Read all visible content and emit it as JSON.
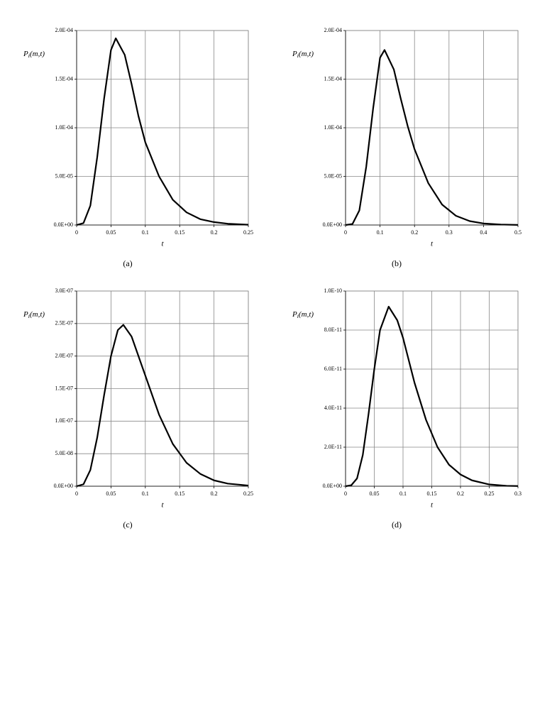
{
  "chart_data": [
    {
      "type": "line",
      "ylabel": "P_i(m,t)",
      "xlabel": "t",
      "caption": "(a)",
      "color": "#000000",
      "grid": true,
      "x": [
        0,
        0.01,
        0.02,
        0.03,
        0.04,
        0.05,
        0.057,
        0.07,
        0.08,
        0.09,
        0.1,
        0.12,
        0.14,
        0.16,
        0.18,
        0.2,
        0.22,
        0.25
      ],
      "values": [
        0,
        2e-06,
        2e-05,
        7e-05,
        0.00013,
        0.00018,
        0.000192,
        0.000175,
        0.000145,
        0.000112,
        8.5e-05,
        5e-05,
        2.6e-05,
        1.3e-05,
        6e-06,
        3e-06,
        1.3e-06,
        3e-07
      ],
      "xlim": [
        0,
        0.25
      ],
      "xticks": [
        0,
        0.05,
        0.1,
        0.15,
        0.2,
        0.25
      ],
      "ylim": [
        0,
        0.0002
      ],
      "yticks": [
        {
          "value": 0,
          "label": "0.0E+00"
        },
        {
          "value": 5e-05,
          "label": "5.0E-05"
        },
        {
          "value": 0.0001,
          "label": "1.0E-04"
        },
        {
          "value": 0.00015,
          "label": "1.5E-04"
        },
        {
          "value": 0.0002,
          "label": "2.0E-04"
        }
      ]
    },
    {
      "type": "line",
      "ylabel": "P_i(m,t)",
      "xlabel": "t",
      "caption": "(b)",
      "color": "#000000",
      "grid": true,
      "x": [
        0,
        0.02,
        0.04,
        0.06,
        0.08,
        0.1,
        0.113,
        0.14,
        0.16,
        0.18,
        0.2,
        0.24,
        0.28,
        0.32,
        0.36,
        0.4,
        0.45,
        0.5
      ],
      "values": [
        0,
        1e-06,
        1.5e-05,
        6e-05,
        0.00012,
        0.000172,
        0.00018,
        0.00016,
        0.00013,
        0.000102,
        7.8e-05,
        4.3e-05,
        2.1e-05,
        9.5e-06,
        4e-06,
        1.6e-06,
        5e-07,
        1e-07
      ],
      "xlim": [
        0,
        0.5
      ],
      "xticks": [
        0,
        0.1,
        0.2,
        0.3,
        0.4,
        0.5
      ],
      "ylim": [
        0,
        0.0002
      ],
      "yticks": [
        {
          "value": 0,
          "label": "0.0E+00"
        },
        {
          "value": 5e-05,
          "label": "5.0E-05"
        },
        {
          "value": 0.0001,
          "label": "1.0E-04"
        },
        {
          "value": 0.00015,
          "label": "1.5E-04"
        },
        {
          "value": 0.0002,
          "label": "2.0E-04"
        }
      ]
    },
    {
      "type": "line",
      "ylabel": "P_i(m,t)",
      "xlabel": "t",
      "caption": "(c)",
      "color": "#000000",
      "grid": true,
      "x": [
        0,
        0.01,
        0.02,
        0.03,
        0.04,
        0.05,
        0.06,
        0.068,
        0.08,
        0.09,
        0.1,
        0.12,
        0.14,
        0.16,
        0.18,
        0.2,
        0.22,
        0.25
      ],
      "values": [
        0,
        3e-09,
        2.5e-08,
        7.5e-08,
        1.4e-07,
        2e-07,
        2.4e-07,
        2.48e-07,
        2.3e-07,
        2e-07,
        1.7e-07,
        1.1e-07,
        6.5e-08,
        3.6e-08,
        1.9e-08,
        9e-09,
        4e-09,
        1e-09
      ],
      "xlim": [
        0,
        0.25
      ],
      "xticks": [
        0,
        0.05,
        0.1,
        0.15,
        0.2,
        0.25
      ],
      "ylim": [
        0,
        3e-07
      ],
      "yticks": [
        {
          "value": 0,
          "label": "0.0E+00"
        },
        {
          "value": 5e-08,
          "label": "5.0E-08"
        },
        {
          "value": 1e-07,
          "label": "1.0E-07"
        },
        {
          "value": 1.5e-07,
          "label": "1.5E-07"
        },
        {
          "value": 2e-07,
          "label": "2.0E-07"
        },
        {
          "value": 2.5e-07,
          "label": "2.5E-07"
        },
        {
          "value": 3e-07,
          "label": "3.0E-07"
        }
      ]
    },
    {
      "type": "line",
      "ylabel": "P_i(m,t)",
      "xlabel": "t",
      "caption": "(d)",
      "color": "#000000",
      "grid": true,
      "x": [
        0,
        0.01,
        0.02,
        0.03,
        0.04,
        0.05,
        0.06,
        0.075,
        0.09,
        0.1,
        0.12,
        0.14,
        0.16,
        0.18,
        0.2,
        0.22,
        0.25,
        0.28,
        0.3
      ],
      "values": [
        0,
        5e-13,
        4e-12,
        1.6e-11,
        3.7e-11,
        6e-11,
        8e-11,
        9.2e-11,
        8.5e-11,
        7.6e-11,
        5.3e-11,
        3.4e-11,
        2e-11,
        1.1e-11,
        6e-12,
        3e-12,
        9e-13,
        2e-13,
        1e-13
      ],
      "xlim": [
        0,
        0.3
      ],
      "xticks": [
        0,
        0.05,
        0.1,
        0.15,
        0.2,
        0.25,
        0.3
      ],
      "ylim": [
        0,
        1e-10
      ],
      "yticks": [
        {
          "value": 0,
          "label": "0.0E+00"
        },
        {
          "value": 2e-11,
          "label": "2.0E-11"
        },
        {
          "value": 4e-11,
          "label": "4.0E-11"
        },
        {
          "value": 6e-11,
          "label": "6.0E-11"
        },
        {
          "value": 8e-11,
          "label": "8.0E-11"
        },
        {
          "value": 1e-10,
          "label": "1.0E-10"
        }
      ]
    }
  ]
}
